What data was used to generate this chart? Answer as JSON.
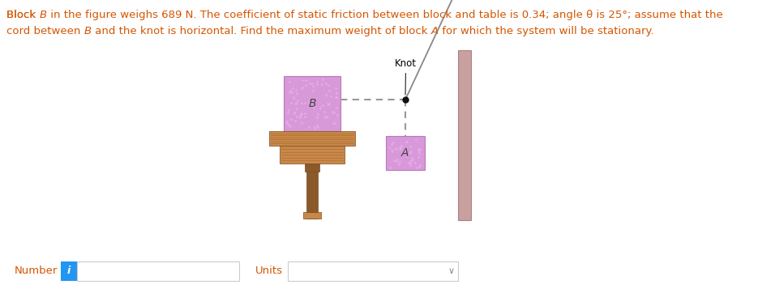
{
  "title_line1": "Block ",
  "title_B": "B",
  "title_mid1": " in the figure weighs 689 N. The coefficient of static friction between block and table is 0.34; angle θ is 25°; assume that the",
  "title_line2_pre": "cord between ",
  "title_B2": "B",
  "title_mid2": " and the knot is horizontal. Find the maximum weight of block ",
  "title_A": "A",
  "title_end": " for which the system will be stationary.",
  "title_color": "#d45500",
  "bg_color": "#ffffff",
  "block_B_color": "#d899d8",
  "block_A_color": "#d899d8",
  "block_edge_color": "#bb77bb",
  "table_top_color": "#c8884a",
  "table_leg_color": "#8b5a2b",
  "wall_color": "#c9a0a0",
  "wall_edge_color": "#b08080",
  "rope_color": "#aaaaaa",
  "rope_dotted_color": "#999999",
  "knot_color": "#111111",
  "number_label": "Number",
  "units_label": "Units",
  "info_button_color": "#2196F3",
  "input_border_color": "#cccccc",
  "number_color": "#d45500",
  "units_color": "#d45500"
}
